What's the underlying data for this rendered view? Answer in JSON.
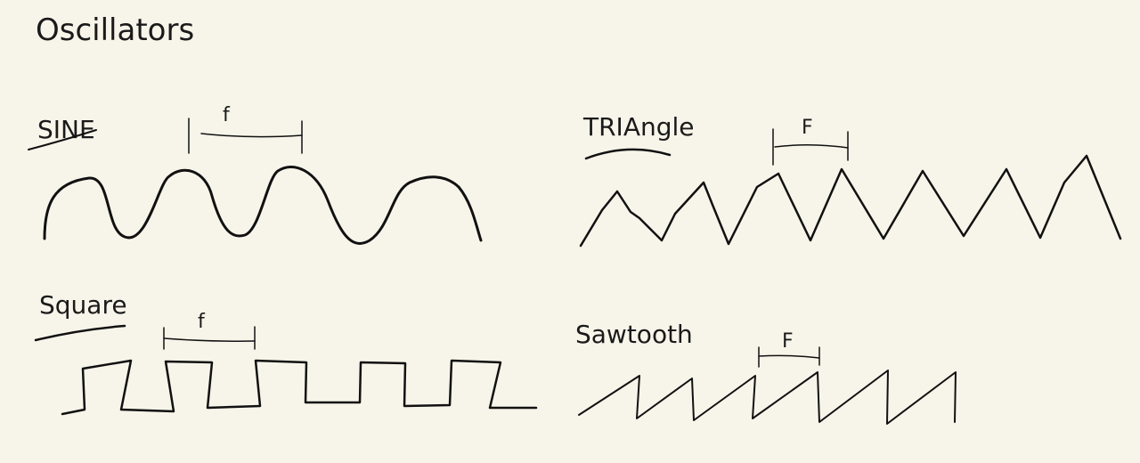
{
  "title": "Oscillators",
  "panels": {
    "sine": {
      "label": "SINE",
      "marker": "f"
    },
    "triangle": {
      "label": "TRIAngle",
      "marker": "F"
    },
    "square": {
      "label": "Square",
      "marker": "f"
    },
    "sawtooth": {
      "label": "Sawtooth",
      "marker": "F"
    }
  },
  "colors": {
    "background": "#f7f5ea",
    "ink": "#111111"
  }
}
